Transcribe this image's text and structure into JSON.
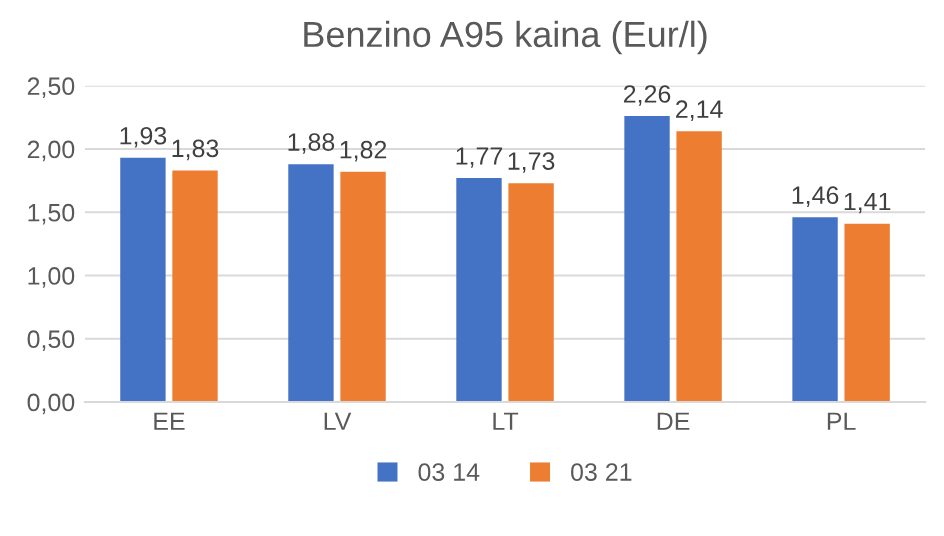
{
  "chart_data": {
    "type": "bar",
    "title": "Benzino A95 kaina (Eur/l)",
    "categories": [
      "EE",
      "LV",
      "LT",
      "DE",
      "PL"
    ],
    "series": [
      {
        "name": "03 14",
        "color": "#4472c4",
        "values": [
          1.93,
          1.88,
          1.77,
          2.26,
          1.46
        ],
        "value_labels": [
          "1,93",
          "1,88",
          "1,77",
          "2,26",
          "1,46"
        ]
      },
      {
        "name": "03 21",
        "color": "#ed7d31",
        "values": [
          1.83,
          1.82,
          1.73,
          2.14,
          1.41
        ],
        "value_labels": [
          "1,83",
          "1,82",
          "1,73",
          "2,14",
          "1,41"
        ]
      }
    ],
    "ylim": [
      0,
      2.5
    ],
    "yticks": [
      {
        "value": 0,
        "label": "0,00"
      },
      {
        "value": 0.5,
        "label": "0,50"
      },
      {
        "value": 1,
        "label": "1,00"
      },
      {
        "value": 1.5,
        "label": "1,50"
      },
      {
        "value": 2,
        "label": "2,00"
      },
      {
        "value": 2.5,
        "label": "2,50"
      }
    ],
    "grid": "y",
    "legend": "bottom"
  }
}
